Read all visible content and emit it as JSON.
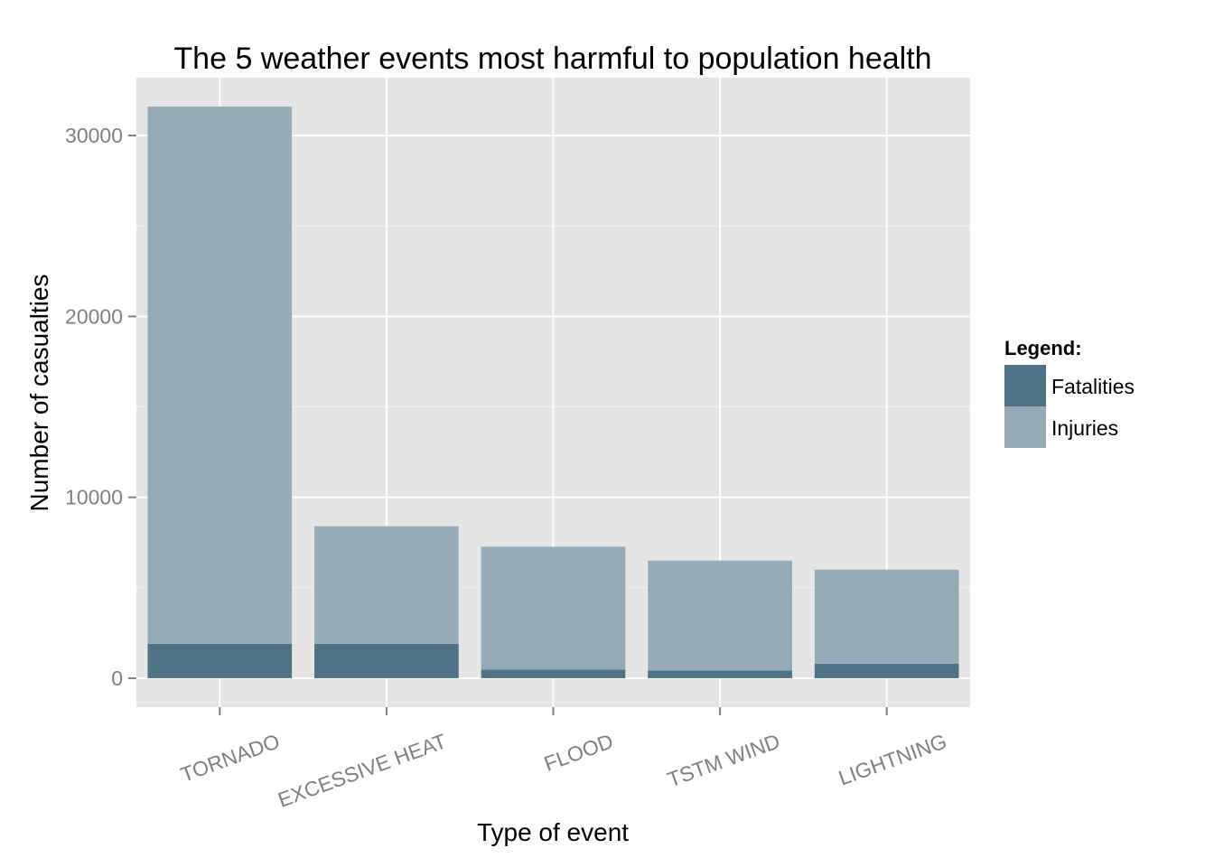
{
  "chart_data": {
    "type": "bar",
    "stacked": true,
    "title": "The 5 weather events most harmful to population health",
    "xlabel": "Type of event",
    "ylabel": "Number of casualties",
    "categories": [
      "TORNADO",
      "EXCESSIVE HEAT",
      "FLOOD",
      "TSTM WIND",
      "LIGHTNING"
    ],
    "series": [
      {
        "name": "Fatalities",
        "values": [
          1900,
          1900,
          470,
          420,
          800
        ],
        "color": "#4f7386"
      },
      {
        "name": "Injuries",
        "values": [
          29700,
          6500,
          6800,
          6080,
          5200
        ],
        "color": "#96abb8"
      }
    ],
    "yticks": [
      0,
      10000,
      20000,
      30000
    ],
    "ylim": [
      -1600,
      33200
    ],
    "grid": true,
    "legend": {
      "title": "Legend:",
      "position": "right"
    },
    "panel_background": "#e5e5e5",
    "grid_color": "#ffffff"
  }
}
